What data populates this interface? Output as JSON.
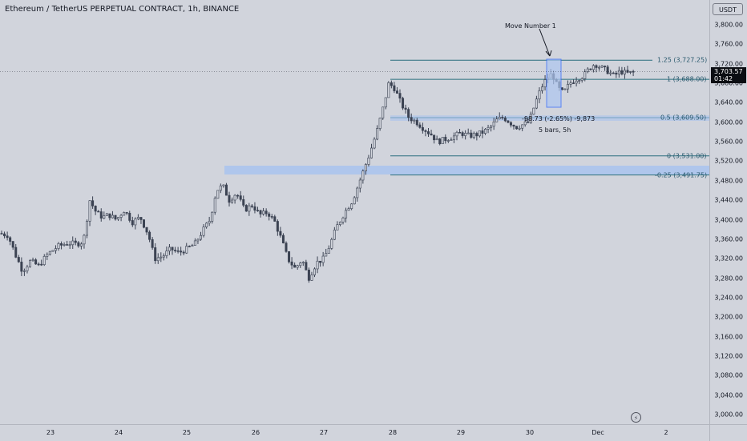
{
  "header": {
    "symbol_title": "Ethereum / TetherUS PERPETUAL CONTRACT, 1h, BINANCE"
  },
  "price_axis": {
    "currency": "USDT",
    "ticks": [
      "3,800.00",
      "3,760.00",
      "3,720.00",
      "3,680.00",
      "3,640.00",
      "3,600.00",
      "3,560.00",
      "3,520.00",
      "3,480.00",
      "3,440.00",
      "3,400.00",
      "3,360.00",
      "3,320.00",
      "3,280.00",
      "3,240.00",
      "3,200.00",
      "3,160.00",
      "3,120.00",
      "3,080.00",
      "3,040.00",
      "3,000.00"
    ],
    "last_price": "3,703.57",
    "countdown": "01:42"
  },
  "time_axis": {
    "ticks": [
      "23",
      "24",
      "25",
      "26",
      "27",
      "28",
      "29",
      "30",
      "Dec",
      "2"
    ]
  },
  "annotations": {
    "move_label": "Move Number 1",
    "measure_label": "-98.73 (-2.65%) -9,873",
    "measure_bars": "5 bars, 5h"
  },
  "fib_levels": [
    {
      "label": "1.25 (3,727.25)",
      "price": 3727.25
    },
    {
      "label": "1 (3,688.00)",
      "price": 3688.0
    },
    {
      "label": "0.5 (3,609.50)",
      "price": 3609.5
    },
    {
      "label": "0 (3,531.00)",
      "price": 3531.0
    },
    {
      "label": "-0.25 (3,491.75)",
      "price": 3491.75
    }
  ],
  "colors": {
    "background": "#d1d4dc",
    "candle_body": "#3b4252",
    "fib_line": "#2b6f7e",
    "zone_fill": "#a9c3ef",
    "measure_fill": "#aec6f0",
    "measure_stroke": "#2962ff"
  },
  "icons": {
    "lightning": "lightning-icon"
  }
}
